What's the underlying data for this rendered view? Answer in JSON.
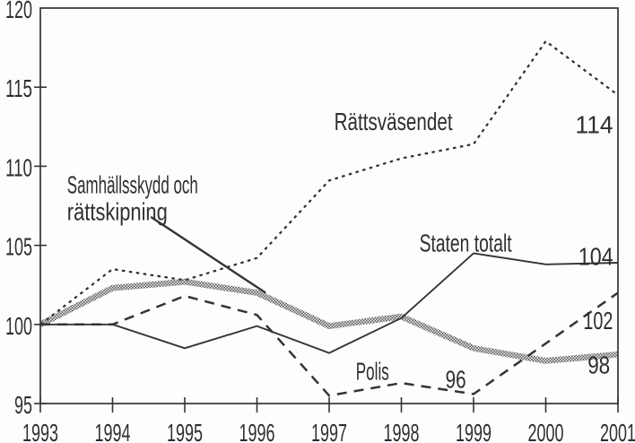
{
  "chart_data": {
    "type": "line",
    "title": "",
    "xlabel": "",
    "ylabel": "",
    "x": [
      1993,
      1994,
      1995,
      1996,
      1997,
      1998,
      1999,
      2000,
      2001
    ],
    "xticks": [
      1993,
      1994,
      1995,
      1996,
      1997,
      1998,
      1999,
      2000,
      2001
    ],
    "ylim": [
      95,
      120
    ],
    "yticks": [
      95,
      100,
      105,
      110,
      115,
      120
    ],
    "grid": false,
    "legend": "inline-annotations",
    "series": [
      {
        "id": "rattsvasendet",
        "name": "Rättsväsendet",
        "style": "dotted",
        "values": [
          100,
          103.5,
          102.8,
          104.2,
          109.1,
          110.5,
          111.4,
          117.9,
          114.5
        ],
        "end_value_label": "114"
      },
      {
        "id": "samhallsskydd",
        "name": "Samhällsskydd och rättskipning",
        "style": "thick-halftone",
        "values": [
          100,
          102.3,
          102.7,
          102.0,
          99.9,
          100.5,
          98.5,
          97.7,
          98.1
        ],
        "end_value_label": "98"
      },
      {
        "id": "staten-totalt",
        "name": "Staten totalt",
        "style": "solid",
        "values": [
          100,
          100.0,
          98.5,
          99.9,
          98.2,
          100.4,
          104.5,
          103.8,
          103.9
        ],
        "end_value_label": "104"
      },
      {
        "id": "polis",
        "name": "Polis",
        "style": "dashed",
        "values": [
          100,
          100.0,
          101.8,
          100.6,
          95.5,
          96.3,
          95.6,
          98.8,
          102.0
        ],
        "end_value_label": "102"
      }
    ],
    "annotations": [
      {
        "id": "rattsvasendet-label",
        "text": "Rättsväsendet",
        "year": 1997.07,
        "value": 112.3
      },
      {
        "id": "value-114",
        "text": "114",
        "year": 2000.41,
        "value": 112.1
      },
      {
        "id": "samhallsskydd-label-line1",
        "text": "Samhällsskydd och",
        "year": 1993.37,
        "value": 108.3
      },
      {
        "id": "samhallsskydd-label-line2",
        "text": "rättskipning",
        "year": 1993.37,
        "value": 106.6
      },
      {
        "id": "staten-label",
        "text": "Staten totalt",
        "year": 1998.25,
        "value": 104.6
      },
      {
        "id": "value-104",
        "text": "104",
        "year": 2000.45,
        "value": 103.75
      },
      {
        "id": "polis-label",
        "text": "Polis",
        "year": 1997.37,
        "value": 96.5
      },
      {
        "id": "value-96",
        "text": "96",
        "year": 1998.61,
        "value": 96.0
      },
      {
        "id": "value-102",
        "text": "102",
        "year": 2000.52,
        "value": 99.7
      },
      {
        "id": "value-98",
        "text": "98",
        "year": 2000.58,
        "value": 96.9
      }
    ],
    "leader_line": {
      "from": {
        "year": 1994.53,
        "value": 106.8
      },
      "to": {
        "year": 1996.12,
        "value": 102.0
      }
    },
    "colors": {
      "ink": "#2e2e2e",
      "line_dark": "#343434",
      "line_halftone": "#4a4a4a",
      "background": "#fdfdfc"
    }
  }
}
